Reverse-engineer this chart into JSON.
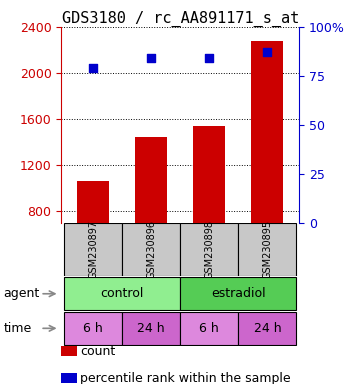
{
  "title": "GDS3180 / rc_AA891171_s_at",
  "samples": [
    "GSM230897",
    "GSM230896",
    "GSM230898",
    "GSM230895"
  ],
  "bar_values": [
    1060,
    1440,
    1540,
    2280
  ],
  "dot_values": [
    79,
    84,
    84,
    87
  ],
  "bar_color": "#cc0000",
  "dot_color": "#0000cc",
  "ylim_left": [
    700,
    2400
  ],
  "ylim_right": [
    0,
    100
  ],
  "yticks_left": [
    800,
    1200,
    1600,
    2000,
    2400
  ],
  "yticks_right": [
    0,
    25,
    50,
    75,
    100
  ],
  "agent_colors": [
    "#90ee90",
    "#55cc55"
  ],
  "time_colors": [
    "#dd88dd",
    "#cc66cc",
    "#dd88dd",
    "#cc66cc"
  ],
  "time_labels": [
    "6 h",
    "24 h",
    "6 h",
    "24 h"
  ],
  "gray_box_color": "#c8c8c8",
  "bar_color_red": "#cc0000",
  "dot_color_blue": "#0000cc",
  "title_fontsize": 11,
  "tick_fontsize": 9,
  "sample_fontsize": 7,
  "annotation_fontsize": 9,
  "legend_fontsize": 9,
  "background_color": "#ffffff"
}
